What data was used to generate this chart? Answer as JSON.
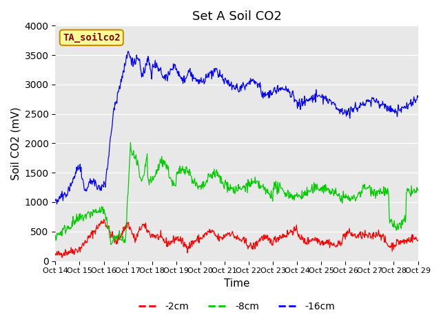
{
  "title": "Set A Soil CO2",
  "ylabel": "Soil CO2 (mV)",
  "xlabel": "Time",
  "ylim": [
    0,
    4000
  ],
  "yticks": [
    0,
    500,
    1000,
    1500,
    2000,
    2500,
    3000,
    3500,
    4000
  ],
  "xtick_labels": [
    "Oct 14",
    "Oct 15",
    "Oct 16",
    "Oct 17",
    "Oct 18",
    "Oct 19",
    "Oct 20",
    "Oct 21",
    "Oct 22",
    "Oct 23",
    "Oct 24",
    "Oct 25",
    "Oct 26",
    "Oct 27",
    "Oct 28",
    "Oct 29"
  ],
  "line_colors": [
    "#ff0000",
    "#00cc00",
    "#0000ff"
  ],
  "line_labels": [
    "-2cm",
    "-8cm",
    "-16cm"
  ],
  "legend_label": "TA_soilco2",
  "legend_bg": "#ffff99",
  "legend_border": "#cc8800",
  "plot_bg": "#e8e8e8",
  "fig_bg": "#ffffff",
  "title_fontsize": 13,
  "axis_fontsize": 11,
  "tick_fontsize": 8
}
